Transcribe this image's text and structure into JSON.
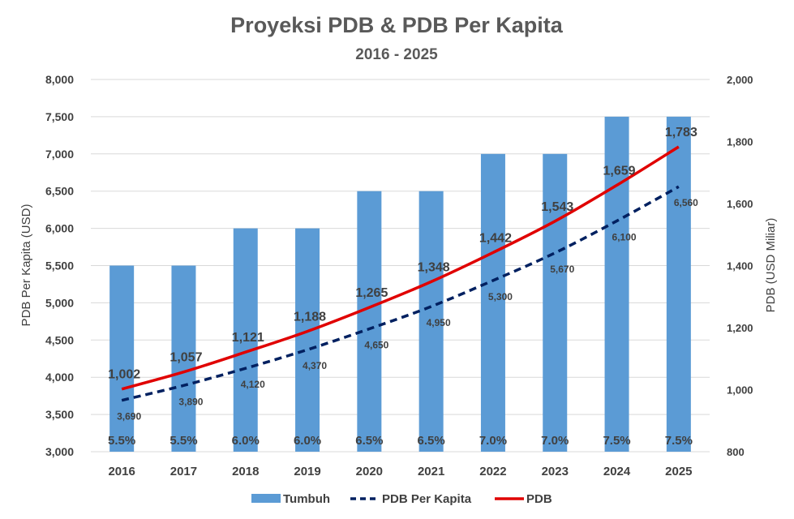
{
  "chart_data": {
    "type": "bar",
    "title": "Proyeksi PDB & PDB Per Kapita",
    "subtitle": "2016 - 2025",
    "categories": [
      "2016",
      "2017",
      "2018",
      "2019",
      "2020",
      "2021",
      "2022",
      "2023",
      "2024",
      "2025"
    ],
    "y_left": {
      "label": "PDB Per Kapita (USD)",
      "lim": [
        3000,
        8000
      ],
      "ticks": [
        "3,000",
        "3,500",
        "4,000",
        "4,500",
        "5,000",
        "5,500",
        "6,000",
        "6,500",
        "7,000",
        "7,500",
        "8,000"
      ]
    },
    "y_right": {
      "label": "PDB (USD Miliar)",
      "lim": [
        800,
        2000
      ],
      "ticks": [
        "800",
        "1,000",
        "1,200",
        "1,400",
        "1,600",
        "1,800",
        "2,000"
      ]
    },
    "series": [
      {
        "name": "Tumbuh",
        "kind": "bar",
        "axis": "left",
        "color": "#5B9BD5",
        "values": [
          5500,
          5500,
          6000,
          6000,
          6500,
          6500,
          7000,
          7000,
          7500,
          7500
        ],
        "labels": [
          "5.5%",
          "5.5%",
          "6.0%",
          "6.0%",
          "6.5%",
          "6.5%",
          "7.0%",
          "7.0%",
          "7.5%",
          "7.5%"
        ]
      },
      {
        "name": "PDB Per Kapita",
        "kind": "line-dashed",
        "axis": "left",
        "color": "#002060",
        "values": [
          3690,
          3890,
          4120,
          4370,
          4650,
          4950,
          5300,
          5670,
          6100,
          6560
        ],
        "labels": [
          "3,690",
          "3,890",
          "4,120",
          "4,370",
          "4,650",
          "4,950",
          "5,300",
          "5,670",
          "6,100",
          "6,560"
        ]
      },
      {
        "name": "PDB",
        "kind": "line",
        "axis": "right",
        "color": "#E00000",
        "values": [
          1002,
          1057,
          1121,
          1188,
          1265,
          1348,
          1442,
          1543,
          1659,
          1783
        ],
        "labels": [
          "1,002",
          "1,057",
          "1,121",
          "1,188",
          "1,265",
          "1,348",
          "1,442",
          "1,543",
          "1,659",
          "1,783"
        ]
      }
    ],
    "grid": true,
    "legend": "bottom"
  }
}
